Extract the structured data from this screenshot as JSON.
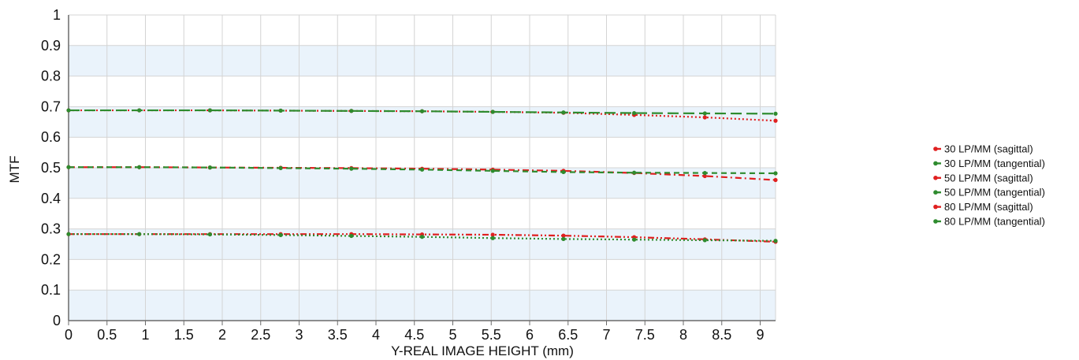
{
  "chart_data": {
    "type": "line",
    "title": "",
    "xlabel": "Y-REAL IMAGE HEIGHT (mm)",
    "ylabel": "MTF",
    "xlim": [
      0,
      9.2
    ],
    "ylim": [
      0,
      1
    ],
    "x_ticks": [
      "0",
      "0.5",
      "1",
      "1.5",
      "2",
      "2.5",
      "3",
      "3.5",
      "4",
      "4.5",
      "5",
      "5.5",
      "6",
      "6.5",
      "7",
      "7.5",
      "8",
      "8.5",
      "9"
    ],
    "y_ticks": [
      "0",
      "0.1",
      "0.2",
      "0.3",
      "0.4",
      "0.5",
      "0.6",
      "0.7",
      "0.8",
      "0.9",
      "1"
    ],
    "grid": true,
    "banding": "alternating light-blue horizontal bands",
    "legend_position": "right",
    "x": [
      0,
      0.92,
      1.84,
      2.76,
      3.68,
      4.6,
      5.52,
      6.44,
      7.36,
      8.28,
      9.2
    ],
    "series": [
      {
        "name": "30 LP/MM (sagittal)",
        "color": "#e02020",
        "dash": "dotted",
        "values": [
          0.688,
          0.688,
          0.688,
          0.687,
          0.686,
          0.685,
          0.683,
          0.68,
          0.673,
          0.665,
          0.654
        ]
      },
      {
        "name": "30 LP/MM (tangential)",
        "color": "#2e8b2e",
        "dash": "long-dash",
        "values": [
          0.688,
          0.688,
          0.688,
          0.687,
          0.686,
          0.685,
          0.683,
          0.681,
          0.679,
          0.678,
          0.677
        ]
      },
      {
        "name": "50 LP/MM (sagittal)",
        "color": "#e02020",
        "dash": "dash-dot",
        "values": [
          0.502,
          0.502,
          0.501,
          0.5,
          0.499,
          0.497,
          0.494,
          0.49,
          0.483,
          0.473,
          0.46
        ]
      },
      {
        "name": "50 LP/MM (tangential)",
        "color": "#2e8b2e",
        "dash": "dash",
        "values": [
          0.502,
          0.502,
          0.501,
          0.499,
          0.497,
          0.494,
          0.49,
          0.486,
          0.484,
          0.483,
          0.482
        ]
      },
      {
        "name": "80 LP/MM (sagittal)",
        "color": "#e02020",
        "dash": "dash-dot-dot",
        "values": [
          0.283,
          0.283,
          0.283,
          0.283,
          0.283,
          0.282,
          0.281,
          0.278,
          0.273,
          0.266,
          0.258
        ]
      },
      {
        "name": "80 LP/MM (tangential)",
        "color": "#2e8b2e",
        "dash": "dotted",
        "values": [
          0.283,
          0.283,
          0.282,
          0.28,
          0.277,
          0.274,
          0.27,
          0.267,
          0.265,
          0.263,
          0.261
        ]
      }
    ]
  },
  "colors": {
    "band": "#eaf3fb",
    "grid": "#d4d4d4",
    "axis": "#6a6a6a",
    "sagittal": "#e02020",
    "tangential": "#2e8b2e"
  }
}
